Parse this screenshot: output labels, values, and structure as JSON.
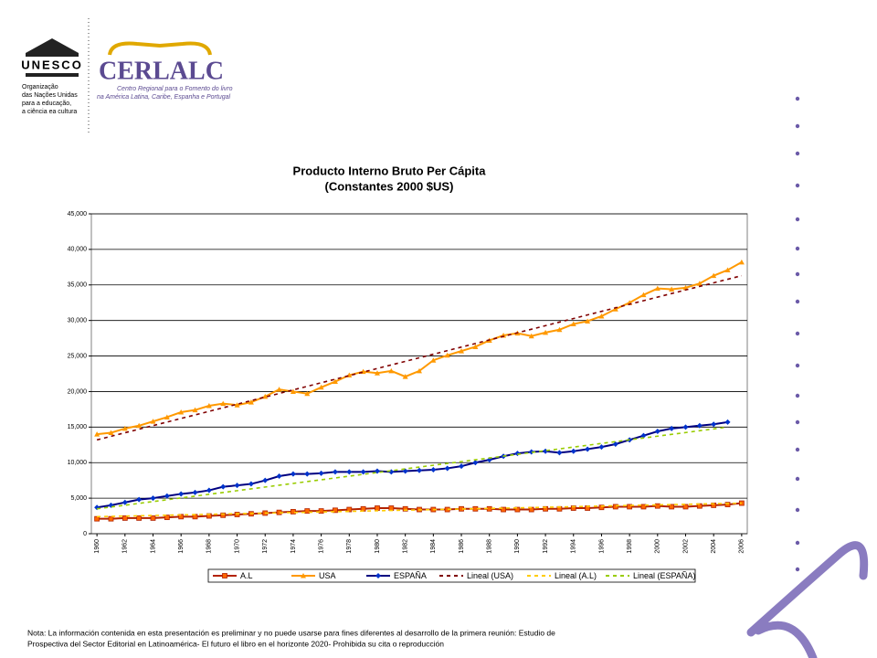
{
  "header": {
    "unesco": "UNESCO",
    "unesco_caption": [
      "Organização",
      "das Nações Unidas",
      "para a educação,",
      "a ciência ea cultura"
    ],
    "org": "CERLALC",
    "org_caption": [
      "Centro Regional para o Fomento do livro",
      "na América Latina, Caribe, Espanha e Portugal"
    ]
  },
  "chart_data": {
    "type": "line",
    "title": [
      "Producto Interno Bruto Per Cápita",
      "(Constantes 2000 $US)"
    ],
    "x": [
      1960,
      1961,
      1962,
      1963,
      1964,
      1965,
      1966,
      1967,
      1968,
      1969,
      1970,
      1971,
      1972,
      1973,
      1974,
      1975,
      1976,
      1977,
      1978,
      1979,
      1980,
      1981,
      1982,
      1983,
      1984,
      1985,
      1986,
      1987,
      1988,
      1989,
      1990,
      1991,
      1992,
      1993,
      1994,
      1995,
      1996,
      1997,
      1998,
      1999,
      2000,
      2001,
      2002,
      2003,
      2004,
      2005,
      2006
    ],
    "xlim": [
      1959.6,
      2006.4
    ],
    "xticks": [
      1960,
      1962,
      1964,
      1966,
      1968,
      1970,
      1972,
      1974,
      1976,
      1978,
      1980,
      1982,
      1984,
      1986,
      1988,
      1990,
      1992,
      1994,
      1996,
      1998,
      2000,
      2002,
      2004,
      2006
    ],
    "ylim": [
      0,
      45000
    ],
    "yticks": [
      0,
      {
        "value": 5000,
        "label": "5,000"
      },
      {
        "value": 10000,
        "label": "10,000"
      },
      {
        "value": 15000,
        "label": "15,000"
      },
      {
        "value": 20000,
        "label": "20,000"
      },
      {
        "value": 25000,
        "label": "25,000"
      },
      {
        "value": 30000,
        "label": "30,000"
      },
      {
        "value": 35000,
        "label": "35,000"
      },
      {
        "value": 40000,
        "label": "40,000"
      },
      {
        "value": 45000,
        "label": "45,000"
      }
    ],
    "grid": true,
    "legend": "bottom",
    "series": [
      {
        "name": "A.L",
        "color": "#b22200",
        "marker_color": "#ff6600",
        "marker": "square",
        "values": [
          2100,
          2100,
          2200,
          2200,
          2200,
          2300,
          2400,
          2400,
          2500,
          2600,
          2700,
          2800,
          2900,
          3000,
          3100,
          3200,
          3200,
          3300,
          3400,
          3500,
          3600,
          3600,
          3500,
          3400,
          3400,
          3400,
          3500,
          3500,
          3500,
          3400,
          3400,
          3400,
          3500,
          3500,
          3600,
          3600,
          3700,
          3800,
          3800,
          3800,
          3900,
          3800,
          3800,
          3900,
          4000,
          4100,
          4300
        ]
      },
      {
        "name": "USA",
        "color": "#ff9900",
        "marker_color": "#ff9900",
        "marker": "triangle",
        "values": [
          14000,
          14200,
          14800,
          15200,
          15800,
          16400,
          17100,
          17400,
          18000,
          18300,
          18100,
          18500,
          19300,
          20300,
          20000,
          19700,
          20600,
          21400,
          22300,
          22800,
          22600,
          22900,
          22100,
          22900,
          24400,
          25100,
          25700,
          26300,
          27200,
          27900,
          28200,
          27800,
          28300,
          28700,
          29500,
          29900,
          30600,
          31600,
          32500,
          33600,
          34500,
          34400,
          34600,
          35200,
          36300,
          37100,
          38200
        ]
      },
      {
        "name": "ESPAÑA",
        "color": "#000080",
        "marker_color": "#0033cc",
        "marker": "diamond",
        "values": [
          3700,
          4000,
          4400,
          4800,
          5000,
          5300,
          5600,
          5800,
          6100,
          6600,
          6800,
          7000,
          7500,
          8100,
          8400,
          8400,
          8500,
          8700,
          8700,
          8700,
          8800,
          8700,
          8800,
          8900,
          9000,
          9200,
          9500,
          10000,
          10400,
          10900,
          11300,
          11500,
          11600,
          11400,
          11600,
          11900,
          12200,
          12600,
          13200,
          13800,
          14400,
          14800,
          15000,
          15200,
          15400,
          15700,
          null
        ]
      },
      {
        "name": "Lineal (USA)",
        "color": "#800000",
        "dash": true,
        "x": [
          1960,
          2006
        ],
        "values": [
          13200,
          36300
        ]
      },
      {
        "name": "Lineal (A.L)",
        "color": "#ffcc00",
        "dash": true,
        "x": [
          1960,
          2006
        ],
        "values": [
          2400,
          4300
        ]
      },
      {
        "name": "Lineal (ESPAÑA)",
        "color": "#99cc00",
        "dash": true,
        "x": [
          1960,
          2005
        ],
        "values": [
          3500,
          15000
        ]
      }
    ]
  },
  "note": [
    "Nota: La información contenida en esta presentación es preliminar y no puede usarse para fines diferentes al desarrollo de la primera reunión: Estudio de",
    "Prospectiva del Sector Editorial en Latinoamérica- El futuro el libro en el horizonte 2020-  Prohibida su cita o reproducción"
  ]
}
